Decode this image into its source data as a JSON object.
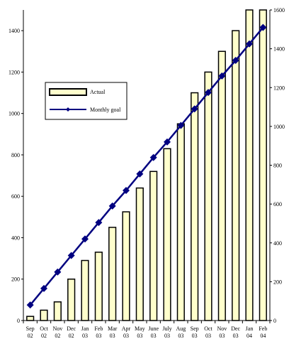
{
  "chart_data": {
    "type": "bar+line",
    "categories": [
      [
        "Sep",
        "02"
      ],
      [
        "Oct",
        "02"
      ],
      [
        "Nov",
        "02"
      ],
      [
        "Dec",
        "02"
      ],
      [
        "Jan",
        "03"
      ],
      [
        "Feb",
        "03"
      ],
      [
        "Mar",
        "03"
      ],
      [
        "Apr",
        "03"
      ],
      [
        "May",
        "03"
      ],
      [
        "June",
        "03"
      ],
      [
        "July",
        "03"
      ],
      [
        "Aug",
        "03"
      ],
      [
        "Sep",
        "03"
      ],
      [
        "Oct",
        "03"
      ],
      [
        "Nov",
        "03"
      ],
      [
        "Dec",
        "03"
      ],
      [
        "Jan",
        "04"
      ],
      [
        "Feb",
        "04"
      ]
    ],
    "series": [
      {
        "name": "Actual",
        "kind": "bar",
        "axis": "left",
        "color": "#ffffcc",
        "values": [
          20,
          50,
          90,
          200,
          290,
          330,
          450,
          525,
          640,
          720,
          830,
          950,
          1100,
          1200,
          1300,
          1400,
          1500,
          1500
        ]
      },
      {
        "name": "Monthly goal",
        "kind": "line",
        "axis": "right",
        "color": "#000080",
        "marker": "diamond",
        "values": [
          80,
          165,
          250,
          335,
          420,
          505,
          590,
          670,
          755,
          840,
          920,
          1005,
          1090,
          1175,
          1260,
          1340,
          1425,
          1510
        ]
      }
    ],
    "y_left": {
      "min": 0,
      "max": 1500,
      "ticks": [
        0,
        200,
        400,
        600,
        800,
        1000,
        1200,
        1400
      ]
    },
    "y_right": {
      "min": 0,
      "max": 1600,
      "ticks": [
        0,
        200,
        400,
        600,
        800,
        1000,
        1200,
        1400,
        1600
      ]
    },
    "legend": {
      "placement": "upper-left-inside",
      "items": [
        "Actual",
        "Monthly goal"
      ]
    },
    "grid": false
  }
}
